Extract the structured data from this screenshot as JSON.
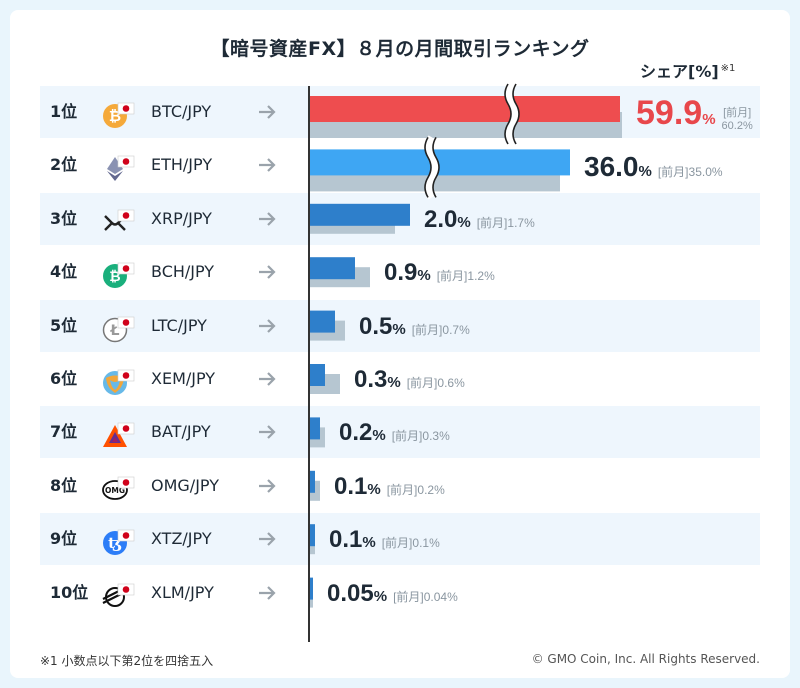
{
  "header": {
    "title": "【暗号資産FX】８月の月間取引ランキング",
    "unit_label": "シェア[%]",
    "unit_note_mark": "※1"
  },
  "footer": {
    "note": "※1 小数点以下第2位を四捨五入",
    "copyright": "© GMO Coin, Inc. All Rights Reserved."
  },
  "colors": {
    "btc_bar": "#ee4d4f",
    "eth_bar": "#3ea6f3",
    "other_bar": "#2e7fcb",
    "prev_bar": "#b6c6d1",
    "top_value": "#e8474b"
  },
  "prev_label": "[前月]",
  "chart_data": {
    "type": "bar",
    "orientation": "horizontal",
    "title": "【暗号資産FX】８月の月間取引ランキング",
    "xlabel": "シェア[%]",
    "axis_break": true,
    "series": [
      {
        "name": "8月",
        "values": [
          59.9,
          36.0,
          2.0,
          0.9,
          0.5,
          0.3,
          0.2,
          0.1,
          0.1,
          0.05
        ]
      },
      {
        "name": "前月",
        "values": [
          60.2,
          35.0,
          1.7,
          1.2,
          0.7,
          0.6,
          0.3,
          0.2,
          0.1,
          0.04
        ]
      }
    ],
    "rows": [
      {
        "rank": "1位",
        "pair": "BTC/JPY",
        "icon": "bitcoin-icon",
        "value": "59.9",
        "prev": "60.2%"
      },
      {
        "rank": "2位",
        "pair": "ETH/JPY",
        "icon": "ethereum-icon",
        "value": "36.0",
        "prev": "35.0%"
      },
      {
        "rank": "3位",
        "pair": "XRP/JPY",
        "icon": "xrp-icon",
        "value": "2.0",
        "prev": "1.7%"
      },
      {
        "rank": "4位",
        "pair": "BCH/JPY",
        "icon": "bitcoin-cash-icon",
        "value": "0.9",
        "prev": "1.2%"
      },
      {
        "rank": "5位",
        "pair": "LTC/JPY",
        "icon": "litecoin-icon",
        "value": "0.5",
        "prev": "0.7%"
      },
      {
        "rank": "6位",
        "pair": "XEM/JPY",
        "icon": "nem-icon",
        "value": "0.3",
        "prev": "0.6%"
      },
      {
        "rank": "7位",
        "pair": "BAT/JPY",
        "icon": "bat-icon",
        "value": "0.2",
        "prev": "0.3%"
      },
      {
        "rank": "8位",
        "pair": "OMG/JPY",
        "icon": "omg-icon",
        "value": "0.1",
        "prev": "0.2%"
      },
      {
        "rank": "9位",
        "pair": "XTZ/JPY",
        "icon": "tezos-icon",
        "value": "0.1",
        "prev": "0.1%"
      },
      {
        "rank": "10位",
        "pair": "XLM/JPY",
        "icon": "stellar-icon",
        "value": "0.05",
        "prev": "0.04%"
      }
    ],
    "percent_sign": "%"
  }
}
